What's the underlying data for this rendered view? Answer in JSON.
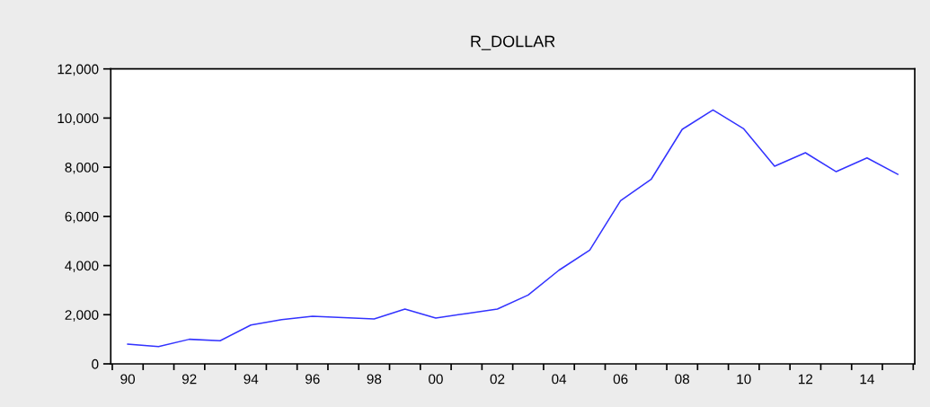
{
  "chart_data": {
    "type": "line",
    "title": "R_DOLLAR",
    "x": [
      1990,
      1991,
      1992,
      1993,
      1994,
      1995,
      1996,
      1997,
      1998,
      1999,
      2000,
      2001,
      2002,
      2003,
      2004,
      2005,
      2006,
      2007,
      2008,
      2009,
      2010,
      2011,
      2012,
      2013,
      2014,
      2015
    ],
    "series": [
      {
        "color": "#3333ff",
        "values": [
          800,
          700,
          1000,
          940,
          1580,
          1800,
          1940,
          1880,
          1830,
          2230,
          1860,
          2050,
          2230,
          2800,
          3810,
          4630,
          6640,
          7520,
          9540,
          10330,
          9560,
          8040,
          8590,
          7820,
          8380,
          7710
        ]
      }
    ],
    "xlim": [
      1989.45,
      2015.55
    ],
    "xticks": [
      {
        "value": 1989.5,
        "label": null
      },
      {
        "value": 1990,
        "label": "90"
      },
      {
        "value": 1990.5,
        "label": null
      },
      {
        "value": 1991.5,
        "label": null
      },
      {
        "value": 1992,
        "label": "92"
      },
      {
        "value": 1992.5,
        "label": null
      },
      {
        "value": 1993.5,
        "label": null
      },
      {
        "value": 1994,
        "label": "94"
      },
      {
        "value": 1994.5,
        "label": null
      },
      {
        "value": 1995.5,
        "label": null
      },
      {
        "value": 1996,
        "label": "96"
      },
      {
        "value": 1996.5,
        "label": null
      },
      {
        "value": 1997.5,
        "label": null
      },
      {
        "value": 1998,
        "label": "98"
      },
      {
        "value": 1998.5,
        "label": null
      },
      {
        "value": 1999.5,
        "label": null
      },
      {
        "value": 2000,
        "label": "00"
      },
      {
        "value": 2000.5,
        "label": null
      },
      {
        "value": 2001.5,
        "label": null
      },
      {
        "value": 2002,
        "label": "02"
      },
      {
        "value": 2002.5,
        "label": null
      },
      {
        "value": 2003.5,
        "label": null
      },
      {
        "value": 2004,
        "label": "04"
      },
      {
        "value": 2004.5,
        "label": null
      },
      {
        "value": 2005.5,
        "label": null
      },
      {
        "value": 2006,
        "label": "06"
      },
      {
        "value": 2006.5,
        "label": null
      },
      {
        "value": 2007.5,
        "label": null
      },
      {
        "value": 2008,
        "label": "08"
      },
      {
        "value": 2008.5,
        "label": null
      },
      {
        "value": 2009.5,
        "label": null
      },
      {
        "value": 2010,
        "label": "10"
      },
      {
        "value": 2010.5,
        "label": null
      },
      {
        "value": 2011.5,
        "label": null
      },
      {
        "value": 2012,
        "label": "12"
      },
      {
        "value": 2012.5,
        "label": null
      },
      {
        "value": 2013.5,
        "label": null
      },
      {
        "value": 2014,
        "label": "14"
      },
      {
        "value": 2014.5,
        "label": null
      },
      {
        "value": 2015.5,
        "label": null
      }
    ],
    "ylim": [
      0,
      12000
    ],
    "yticks": [
      {
        "value": 0,
        "label": "0"
      },
      {
        "value": 2000,
        "label": "2,000"
      },
      {
        "value": 4000,
        "label": "4,000"
      },
      {
        "value": 6000,
        "label": "6,000"
      },
      {
        "value": 8000,
        "label": "8,000"
      },
      {
        "value": 10000,
        "label": "10,000"
      },
      {
        "value": 12000,
        "label": "12,000"
      }
    ],
    "grid": false,
    "legend": false,
    "marker": "none",
    "line_style": "solid"
  }
}
